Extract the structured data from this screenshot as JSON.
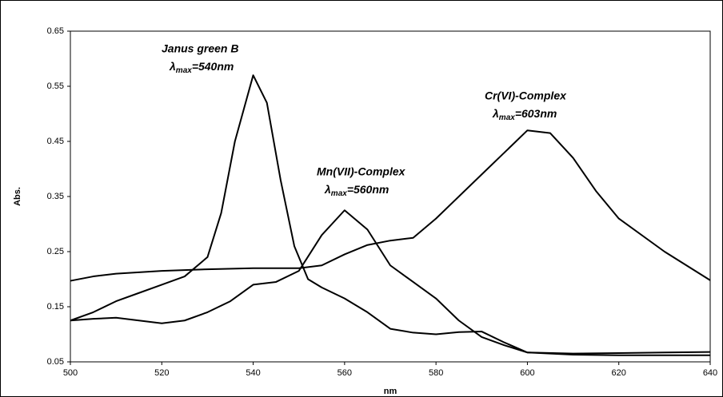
{
  "chart_data": {
    "type": "line",
    "x_label": "nm",
    "y_label": "Abs.",
    "xlim": [
      500,
      640
    ],
    "xticks": [
      500,
      520,
      540,
      560,
      580,
      600,
      620,
      640
    ],
    "ylim": [
      0.05,
      0.65
    ],
    "yticks": [
      0.05,
      0.15,
      0.25,
      0.35,
      0.45,
      0.55,
      0.65
    ],
    "series": [
      {
        "name": "Janus green B",
        "color": "#000000",
        "annotation": {
          "symbol": "λ",
          "subscript": "max",
          "text": "=540nm"
        },
        "x": [
          500,
          505,
          510,
          515,
          520,
          525,
          530,
          533,
          536,
          540,
          543,
          546,
          549,
          552,
          555,
          560,
          565,
          570,
          575,
          580,
          585,
          590,
          595,
          600,
          610,
          620,
          630,
          640
        ],
        "values": [
          0.125,
          0.14,
          0.16,
          0.175,
          0.19,
          0.205,
          0.24,
          0.32,
          0.45,
          0.57,
          0.52,
          0.38,
          0.26,
          0.2,
          0.185,
          0.165,
          0.14,
          0.11,
          0.103,
          0.1,
          0.104,
          0.105,
          0.085,
          0.067,
          0.063,
          0.062,
          0.062,
          0.062
        ]
      },
      {
        "name": "Mn(VII)-Complex",
        "color": "#000000",
        "annotation": {
          "symbol": "λ",
          "subscript": "max",
          "text": "=560nm"
        },
        "x": [
          500,
          505,
          510,
          515,
          520,
          525,
          530,
          535,
          540,
          545,
          550,
          555,
          560,
          565,
          570,
          575,
          580,
          585,
          590,
          595,
          600,
          610,
          620,
          630,
          640
        ],
        "values": [
          0.125,
          0.128,
          0.13,
          0.125,
          0.12,
          0.125,
          0.14,
          0.16,
          0.19,
          0.195,
          0.215,
          0.28,
          0.325,
          0.29,
          0.225,
          0.195,
          0.165,
          0.125,
          0.095,
          0.08,
          0.067,
          0.065,
          0.066,
          0.067,
          0.068
        ]
      },
      {
        "name": "Cr(VI)-Complex",
        "color": "#000000",
        "annotation": {
          "symbol": "λ",
          "subscript": "max",
          "text": "=603nm"
        },
        "x": [
          500,
          505,
          510,
          520,
          530,
          540,
          550,
          555,
          560,
          565,
          570,
          575,
          580,
          590,
          595,
          600,
          605,
          610,
          615,
          620,
          630,
          640
        ],
        "values": [
          0.197,
          0.205,
          0.21,
          0.215,
          0.218,
          0.22,
          0.22,
          0.225,
          0.245,
          0.262,
          0.27,
          0.275,
          0.31,
          0.39,
          0.43,
          0.47,
          0.465,
          0.42,
          0.36,
          0.31,
          0.25,
          0.198
        ]
      }
    ]
  }
}
